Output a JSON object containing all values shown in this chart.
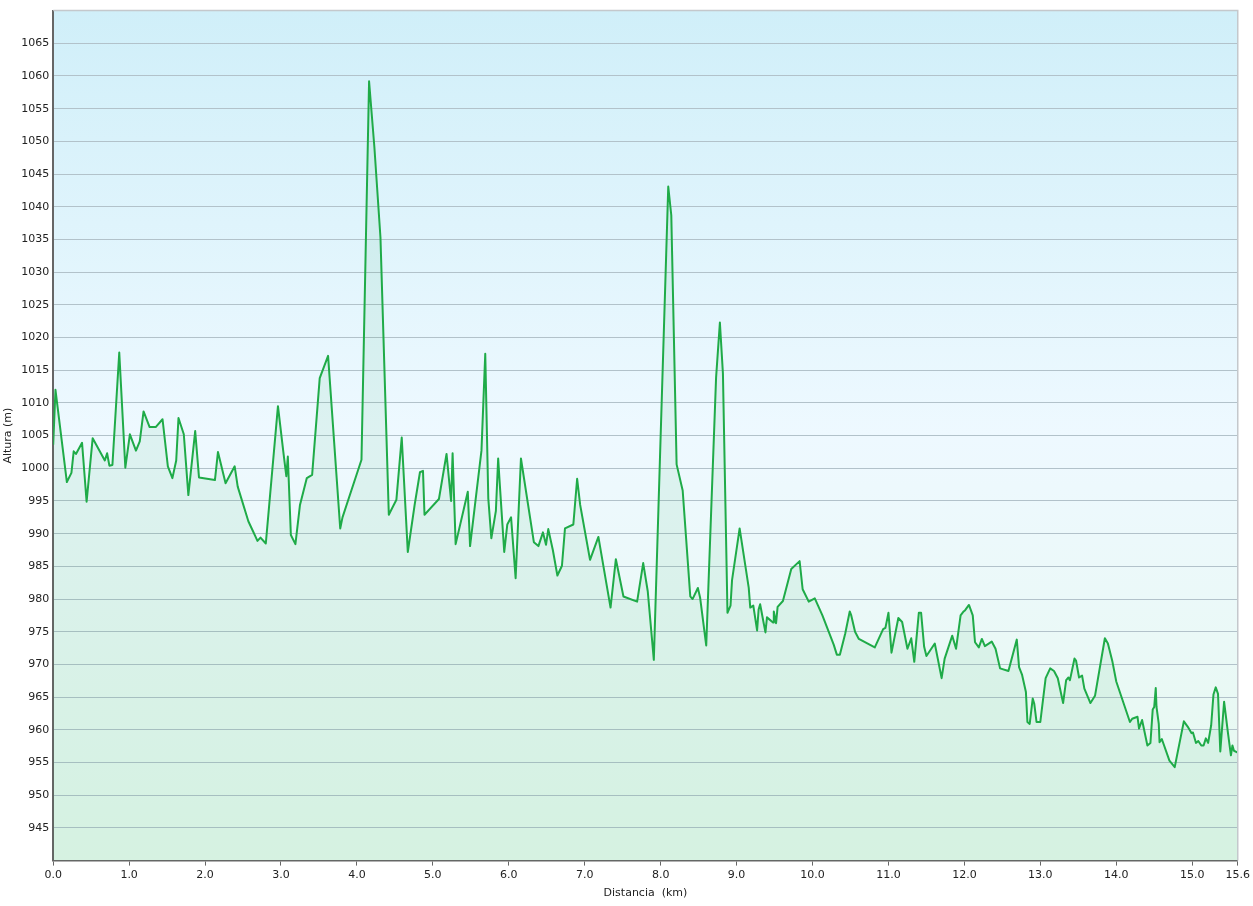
{
  "chart_data": {
    "type": "area",
    "xlabel": "Distancia  (km)",
    "ylabel": "Altura (m)",
    "color": "#1fab48",
    "x": [
      0,
      0.03,
      0.18,
      0.24,
      0.27,
      0.3,
      0.38,
      0.44,
      0.52,
      0.68,
      0.71,
      0.74,
      0.78,
      0.87,
      0.95,
      1.01,
      1.09,
      1.14,
      1.19,
      1.27,
      1.35,
      1.44,
      1.51,
      1.57,
      1.62,
      1.65,
      1.72,
      1.78,
      1.87,
      1.92,
      2.13,
      2.17,
      2.27,
      2.39,
      2.43,
      2.57,
      2.69,
      2.73,
      2.8,
      2.96,
      3.03,
      3.07,
      3.09,
      3.13,
      3.19,
      3.25,
      3.34,
      3.41,
      3.51,
      3.62,
      3.78,
      3.81,
      4.06,
      4.16,
      4.23,
      4.31,
      4.42,
      4.52,
      4.59,
      4.67,
      4.76,
      4.83,
      4.87,
      4.89,
      5.08,
      5.18,
      5.24,
      5.26,
      5.3,
      5.46,
      5.49,
      5.64,
      5.69,
      5.73,
      5.77,
      5.83,
      5.86,
      5.88,
      5.94,
      5.98,
      6.03,
      6.09,
      6.16,
      6.33,
      6.39,
      6.45,
      6.49,
      6.52,
      6.58,
      6.64,
      6.7,
      6.74,
      6.85,
      6.9,
      6.94,
      7.07,
      7.18,
      7.34,
      7.41,
      7.51,
      7.69,
      7.77,
      7.83,
      7.91,
      8.1,
      8.14,
      8.21,
      8.29,
      8.39,
      8.42,
      8.49,
      8.52,
      8.6,
      8.73,
      8.78,
      8.82,
      8.88,
      8.92,
      8.94,
      9.04,
      9.16,
      9.18,
      9.22,
      9.27,
      9.29,
      9.31,
      9.38,
      9.4,
      9.48,
      9.49,
      9.52,
      9.54,
      9.61,
      9.72,
      9.83,
      9.87,
      9.95,
      10.03,
      10.13,
      10.28,
      10.32,
      10.36,
      10.43,
      10.49,
      10.51,
      10.56,
      10.61,
      10.82,
      10.93,
      10.96,
      11.0,
      11.04,
      11.13,
      11.18,
      11.25,
      11.3,
      11.34,
      11.4,
      11.43,
      11.47,
      11.5,
      11.61,
      11.7,
      11.74,
      11.84,
      11.89,
      11.95,
      11.99,
      12.01,
      12.06,
      12.11,
      12.14,
      12.19,
      12.23,
      12.27,
      12.36,
      12.41,
      12.47,
      12.58,
      12.69,
      12.72,
      12.76,
      12.81,
      12.83,
      12.86,
      12.9,
      12.92,
      12.95,
      13.0,
      13.07,
      13.13,
      13.18,
      13.23,
      13.3,
      13.34,
      13.37,
      13.39,
      13.45,
      13.47,
      13.51,
      13.55,
      13.58,
      13.66,
      13.72,
      13.85,
      13.89,
      13.95,
      14.0,
      14.18,
      14.21,
      14.28,
      14.3,
      14.34,
      14.41,
      14.45,
      14.48,
      14.5,
      14.52,
      14.53,
      14.56,
      14.57,
      14.6,
      14.7,
      14.77,
      14.89,
      14.94,
      14.99,
      15.01,
      15.05,
      15.08,
      15.12,
      15.15,
      15.18,
      15.21,
      15.25,
      15.28,
      15.31,
      15.34,
      15.37,
      15.42,
      15.47,
      15.51,
      15.53,
      15.55,
      15.6
    ],
    "values": [
      1003.6,
      1012.0,
      997.9,
      999.3,
      1002.6,
      1002.2,
      1003.9,
      994.9,
      1004.6,
      1001.2,
      1002.3,
      1000.4,
      1000.5,
      1017.7,
      1000.1,
      1005.2,
      1002.7,
      1004.1,
      1008.7,
      1006.3,
      1006.3,
      1007.5,
      1000.3,
      998.5,
      1001.2,
      1007.7,
      1005.2,
      995.9,
      1005.7,
      998.6,
      998.2,
      1002.5,
      997.7,
      1000.3,
      997.2,
      991.9,
      988.9,
      989.4,
      988.5,
      1009.5,
      1002.6,
      998.8,
      1001.8,
      989.8,
      988.4,
      994.4,
      998.5,
      999.0,
      1013.8,
      1017.2,
      990.8,
      992.5,
      1001.3,
      1059.2,
      1049.1,
      1035.3,
      992.9,
      995.2,
      1004.7,
      987.2,
      994.4,
      999.4,
      999.6,
      992.9,
      995.3,
      1002.2,
      995.0,
      1002.3,
      988.4,
      996.4,
      988.1,
      1002.7,
      1017.5,
      995.4,
      989.3,
      993.5,
      1001.5,
      997.8,
      987.2,
      991.4,
      992.5,
      983.2,
      1001.5,
      988.7,
      988.1,
      990.2,
      988.3,
      990.7,
      987.5,
      983.6,
      985.1,
      990.8,
      991.4,
      998.4,
      994.4,
      986.0,
      989.5,
      978.7,
      986.1,
      980.4,
      979.6,
      985.5,
      981.2,
      970.7,
      1043.1,
      1038.7,
      1000.6,
      996.6,
      980.4,
      980.0,
      981.7,
      980.2,
      972.9,
      1013.9,
      1022.3,
      1014.5,
      977.9,
      979.0,
      982.9,
      990.8,
      981.7,
      978.7,
      979.0,
      975.2,
      978.4,
      979.2,
      974.9,
      977.2,
      976.4,
      978.1,
      976.3,
      978.8,
      979.7,
      984.6,
      985.8,
      981.5,
      979.6,
      980.1,
      977.5,
      973.0,
      971.5,
      971.5,
      974.7,
      978.1,
      977.5,
      975.0,
      973.9,
      972.6,
      975.4,
      975.6,
      977.9,
      971.8,
      977.1,
      976.5,
      972.4,
      974.0,
      970.4,
      977.9,
      977.9,
      972.7,
      971.3,
      973.2,
      967.9,
      970.9,
      974.4,
      972.4,
      977.5,
      978.1,
      978.3,
      979.1,
      977.5,
      973.4,
      972.6,
      973.9,
      972.8,
      973.5,
      972.4,
      969.4,
      969.0,
      973.8,
      969.6,
      968.4,
      965.8,
      961.2,
      960.9,
      964.8,
      964.0,
      961.2,
      961.2,
      967.9,
      969.4,
      969.0,
      967.9,
      964.1,
      967.6,
      968.0,
      967.6,
      970.9,
      970.6,
      968.0,
      968.3,
      966.3,
      964.1,
      965.2,
      974.0,
      973.2,
      970.4,
      967.4,
      961.2,
      961.7,
      962.0,
      960.2,
      961.5,
      957.6,
      958.0,
      963.1,
      963.5,
      966.4,
      963.5,
      960.9,
      958.1,
      958.6,
      955.3,
      954.3,
      961.3,
      960.5,
      959.5,
      959.6,
      958.0,
      958.3,
      957.6,
      957.6,
      958.7,
      958.0,
      960.7,
      965.4,
      966.5,
      965.5,
      956.7,
      964.3,
      959.6,
      956.1,
      957.6,
      956.8,
      956.5
    ],
    "xlim": [
      0,
      15.6
    ],
    "ylim": [
      940,
      1070
    ],
    "xticks": [
      {
        "value": 0,
        "label": "0.0"
      },
      {
        "value": 1,
        "label": "1.0"
      },
      {
        "value": 2,
        "label": "2.0"
      },
      {
        "value": 3,
        "label": "3.0"
      },
      {
        "value": 4,
        "label": "4.0"
      },
      {
        "value": 5,
        "label": "5.0"
      },
      {
        "value": 6,
        "label": "6.0"
      },
      {
        "value": 7,
        "label": "7.0"
      },
      {
        "value": 8,
        "label": "8.0"
      },
      {
        "value": 9,
        "label": "9.0"
      },
      {
        "value": 10,
        "label": "10.0"
      },
      {
        "value": 11,
        "label": "11.0"
      },
      {
        "value": 12,
        "label": "12.0"
      },
      {
        "value": 13,
        "label": "13.0"
      },
      {
        "value": 14,
        "label": "14.0"
      },
      {
        "value": 15,
        "label": "15.0"
      },
      {
        "value": 15.6,
        "label": "15.6"
      }
    ],
    "yticks": [
      945,
      950,
      955,
      960,
      965,
      970,
      975,
      980,
      985,
      990,
      995,
      1000,
      1005,
      1010,
      1015,
      1020,
      1025,
      1030,
      1035,
      1040,
      1045,
      1050,
      1055,
      1060,
      1065
    ],
    "grid": "y"
  }
}
